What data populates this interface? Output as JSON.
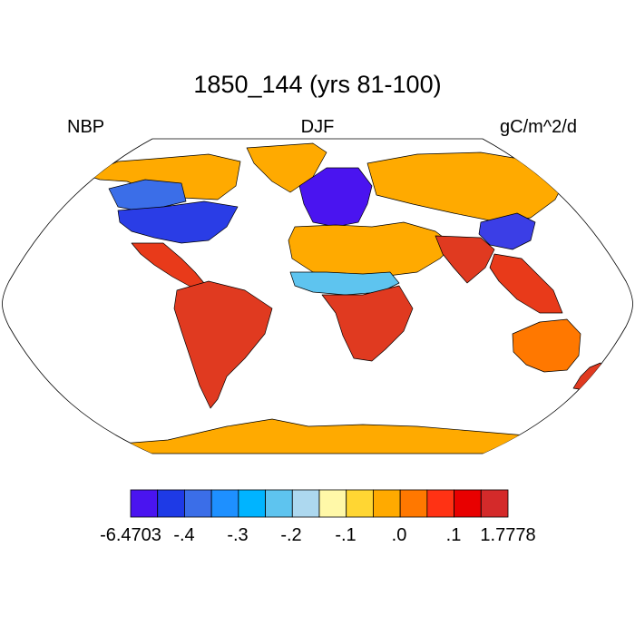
{
  "title": "1850_144 (yrs 81-100)",
  "left_label": "NBP",
  "center_label": "DJF",
  "right_label": "gC/m^2/d",
  "colorbar": {
    "colors": [
      "#4a14f0",
      "#1e3ae6",
      "#3b6ee8",
      "#1e90ff",
      "#00b4ff",
      "#5ec4ef",
      "#add8ef",
      "#fff8a8",
      "#ffd633",
      "#ffaa00",
      "#ff7800",
      "#ff3214",
      "#e80000",
      "#d42a2a"
    ],
    "labels": [
      "-6.4703",
      "-.4",
      "-.3",
      "-.2",
      "-.1",
      ".0",
      ".1",
      "1.7778"
    ]
  },
  "map": {
    "projection": "Robinson",
    "ocean_color": "#ffffff",
    "regions": [
      {
        "name": "Greenland",
        "fill": "#ffaa00"
      },
      {
        "name": "North America north",
        "fill": "#ffaa00"
      },
      {
        "name": "Canada west",
        "fill": "#3b6ee8"
      },
      {
        "name": "United States east",
        "fill": "#2a3de6"
      },
      {
        "name": "Central America",
        "fill": "#e83a1a"
      },
      {
        "name": "South America",
        "fill": "#e03a20"
      },
      {
        "name": "Europe",
        "fill": "#4a14f0"
      },
      {
        "name": "Siberia",
        "fill": "#ffaa00"
      },
      {
        "name": "Sahara and Arabia",
        "fill": "#ffaa00"
      },
      {
        "name": "Sahel",
        "fill": "#5ec4ef"
      },
      {
        "name": "Central Africa",
        "fill": "#e03a20"
      },
      {
        "name": "East China",
        "fill": "#3b3ee6"
      },
      {
        "name": "South Asia",
        "fill": "#e03a20"
      },
      {
        "name": "Southeast Asia",
        "fill": "#e83a1a"
      },
      {
        "name": "Australia",
        "fill": "#ff7800"
      },
      {
        "name": "New Zealand",
        "fill": "#e03a20"
      },
      {
        "name": "Antarctica",
        "fill": "#ffaa00"
      }
    ]
  }
}
